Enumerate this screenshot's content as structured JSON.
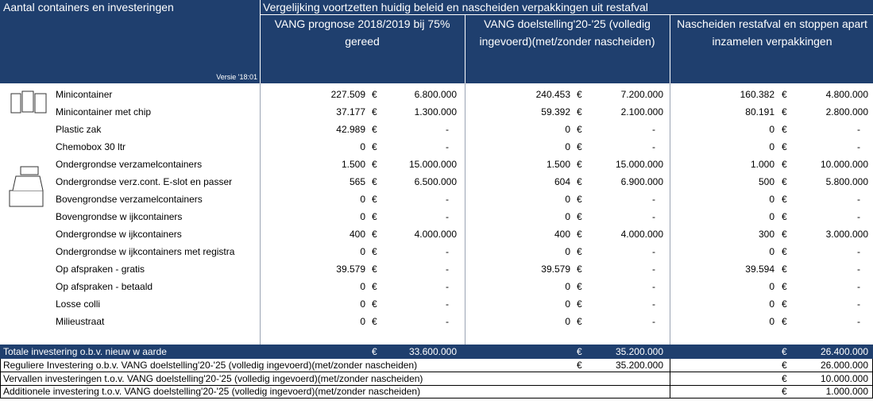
{
  "header": {
    "title": "Aantal containers en investeringen",
    "comparison": "Vergelijking voortzetten huidig beleid en nascheiden verpakkingen uit restafval",
    "version": "Versie '18:01",
    "columns": [
      "VANG prognose 2018/2019 bij 75% gereed",
      "VANG doelstelling'20-'25 (volledig ingevoerd)(met/zonder nascheiden)",
      "Nascheiden restafval en stoppen apart inzamelen verpakkingen"
    ]
  },
  "currency": "€",
  "table": {
    "rows": [
      {
        "label": "Minicontainer",
        "values": [
          "227.509",
          "6.800.000",
          "240.453",
          "7.200.000",
          "160.382",
          "4.800.000"
        ]
      },
      {
        "label": "Minicontainer met chip",
        "values": [
          "37.177",
          "1.300.000",
          "59.392",
          "2.100.000",
          "80.191",
          "2.800.000"
        ]
      },
      {
        "label": "Plastic zak",
        "values": [
          "42.989",
          "-",
          "0",
          "-",
          "0",
          "-"
        ]
      },
      {
        "label": "Chemobox 30 ltr",
        "values": [
          "0",
          "-",
          "0",
          "-",
          "0",
          "-"
        ]
      },
      {
        "label": "Ondergrondse verzamelcontainers",
        "values": [
          "1.500",
          "15.000.000",
          "1.500",
          "15.000.000",
          "1.000",
          "10.000.000"
        ]
      },
      {
        "label": "Ondergrondse verz.cont. E-slot en passer",
        "values": [
          "565",
          "6.500.000",
          "604",
          "6.900.000",
          "500",
          "5.800.000"
        ]
      },
      {
        "label": "Bovengrondse verzamelcontainers",
        "values": [
          "0",
          "-",
          "0",
          "-",
          "0",
          "-"
        ]
      },
      {
        "label": "Bovengrondse w ijkcontainers",
        "values": [
          "0",
          "-",
          "0",
          "-",
          "0",
          "-"
        ]
      },
      {
        "label": "Ondergrondse w ijkcontainers",
        "values": [
          "400",
          "4.000.000",
          "400",
          "4.000.000",
          "300",
          "3.000.000"
        ]
      },
      {
        "label": "Ondergrondse w ijkcontainers met registra",
        "values": [
          "0",
          "-",
          "0",
          "-",
          "0",
          "-"
        ]
      },
      {
        "label": "Op afspraken - gratis",
        "values": [
          "39.579",
          "-",
          "39.579",
          "-",
          "39.594",
          "-"
        ]
      },
      {
        "label": "Op afspraken - betaald",
        "values": [
          "0",
          "-",
          "0",
          "-",
          "0",
          "-"
        ]
      },
      {
        "label": "Losse colli",
        "values": [
          "0",
          "-",
          "0",
          "-",
          "0",
          "-"
        ]
      },
      {
        "label": "Milieustraat",
        "values": [
          "0",
          "-",
          "0",
          "-",
          "0",
          "-"
        ]
      }
    ],
    "total": {
      "label": "Totale investering o.b.v. nieuw w aarde",
      "values": [
        "33.600.000",
        "35.200.000",
        "26.400.000"
      ]
    },
    "summary": [
      {
        "label": "Reguliere Investering o.b.v. VANG doelstelling'20-'25 (volledig ingevoerd)(met/zonder nascheiden)",
        "values": [
          null,
          "35.200.000",
          "26.000.000"
        ]
      },
      {
        "label": "Vervallen investeringen t.o.v. VANG doelstelling'20-'25 (volledig ingevoerd)(met/zonder nascheiden)",
        "values": [
          null,
          null,
          "10.000.000"
        ]
      },
      {
        "label": "Additionele investering t.o.v. VANG doelstelling'20-'25 (volledig ingevoerd)(met/zonder nascheiden)",
        "values": [
          null,
          null,
          "1.000.000"
        ]
      }
    ]
  }
}
